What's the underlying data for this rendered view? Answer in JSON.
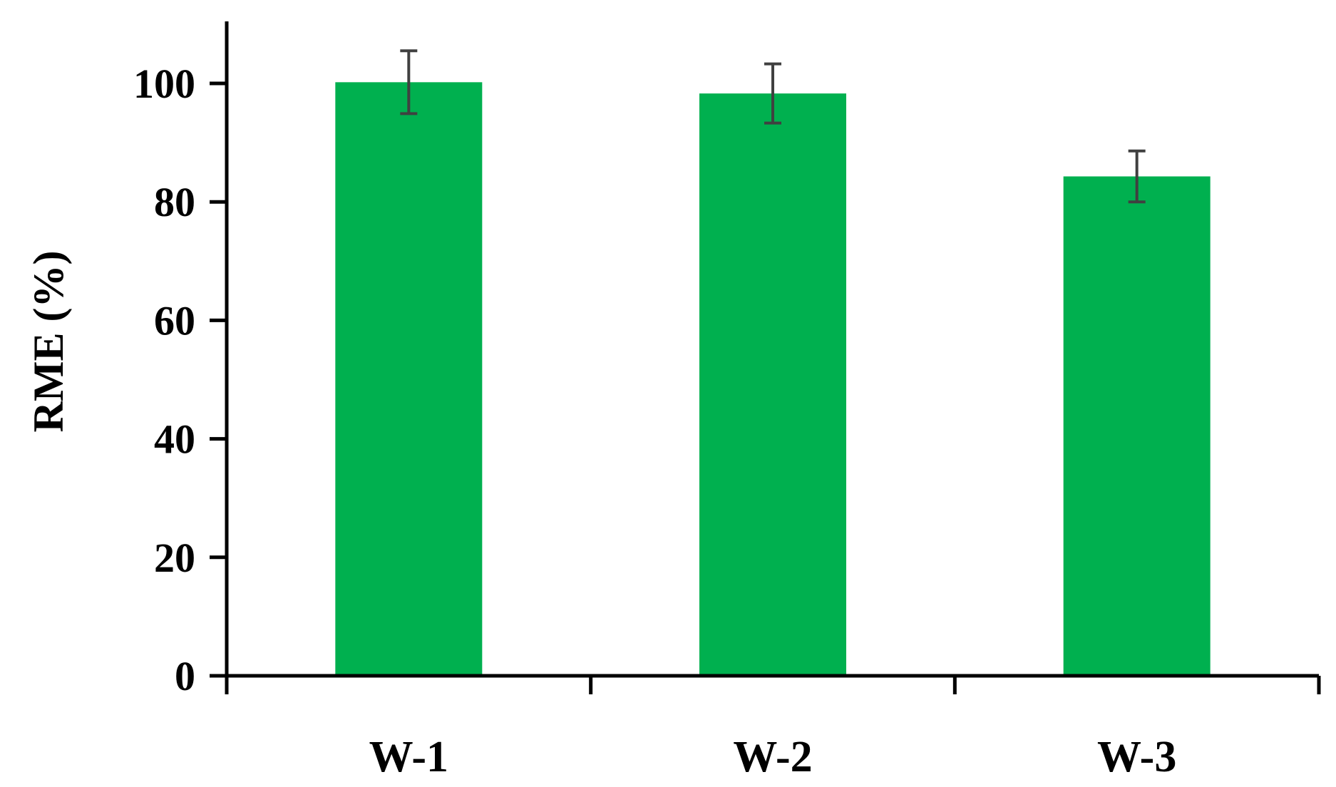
{
  "chart_data": {
    "type": "bar",
    "title": "",
    "xlabel": "",
    "ylabel": "RME (%)",
    "categories": [
      "W-1",
      "W-2",
      "W-3"
    ],
    "series": [
      {
        "values": [
          100.2,
          98.3,
          84.3
        ],
        "error": [
          5.3,
          5.0,
          4.3
        ]
      }
    ],
    "ylim": [
      0,
      110
    ],
    "yticks": [
      "0",
      "20",
      "40",
      "60",
      "80",
      "100"
    ],
    "grid": false,
    "legend": "none",
    "bar_color": "#00b04f",
    "error_color": "#404040",
    "axis_color": "#000000"
  }
}
